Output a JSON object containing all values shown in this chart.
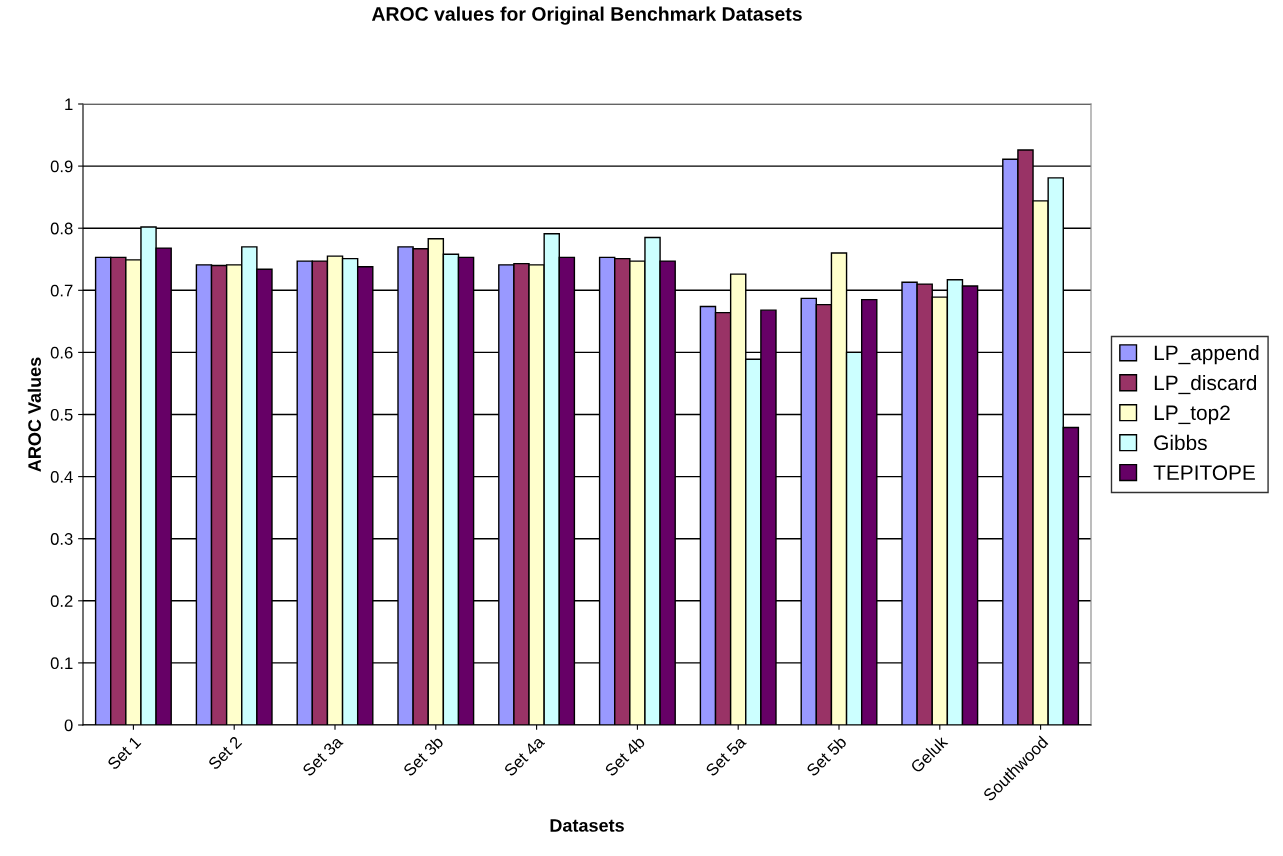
{
  "chart_data": {
    "type": "bar",
    "title": "AROC values for Original Benchmark Datasets",
    "xlabel": "Datasets",
    "ylabel": "AROC Values",
    "categories": [
      "Set 1",
      "Set 2",
      "Set 3a",
      "Set 3b",
      "Set 4a",
      "Set 4b",
      "Set 5a",
      "Set 5b",
      "Geluk",
      "Southwood"
    ],
    "series": [
      {
        "name": "LP_append",
        "color": "#9999ff",
        "values": [
          0.753,
          0.741,
          0.747,
          0.77,
          0.741,
          0.753,
          0.674,
          0.687,
          0.713,
          0.911
        ]
      },
      {
        "name": "LP_discard",
        "color": "#993366",
        "values": [
          0.753,
          0.74,
          0.747,
          0.767,
          0.743,
          0.751,
          0.664,
          0.677,
          0.71,
          0.926
        ]
      },
      {
        "name": "LP_top2",
        "color": "#ffffcc",
        "values": [
          0.749,
          0.741,
          0.755,
          0.783,
          0.741,
          0.747,
          0.726,
          0.76,
          0.689,
          0.844
        ]
      },
      {
        "name": "Gibbs",
        "color": "#ccffff",
        "values": [
          0.802,
          0.77,
          0.751,
          0.758,
          0.791,
          0.785,
          0.589,
          0.6,
          0.717,
          0.881
        ]
      },
      {
        "name": "TEPITOPE",
        "color": "#660066",
        "values": [
          0.768,
          0.734,
          0.738,
          0.753,
          0.753,
          0.747,
          0.668,
          0.685,
          0.707,
          0.479
        ]
      }
    ],
    "ylim": [
      0,
      1
    ],
    "yticks": [
      0,
      0.1,
      0.2,
      0.3,
      0.4,
      0.5,
      0.6,
      0.7,
      0.8,
      0.9,
      1
    ],
    "grid": "y",
    "legend": "right"
  }
}
